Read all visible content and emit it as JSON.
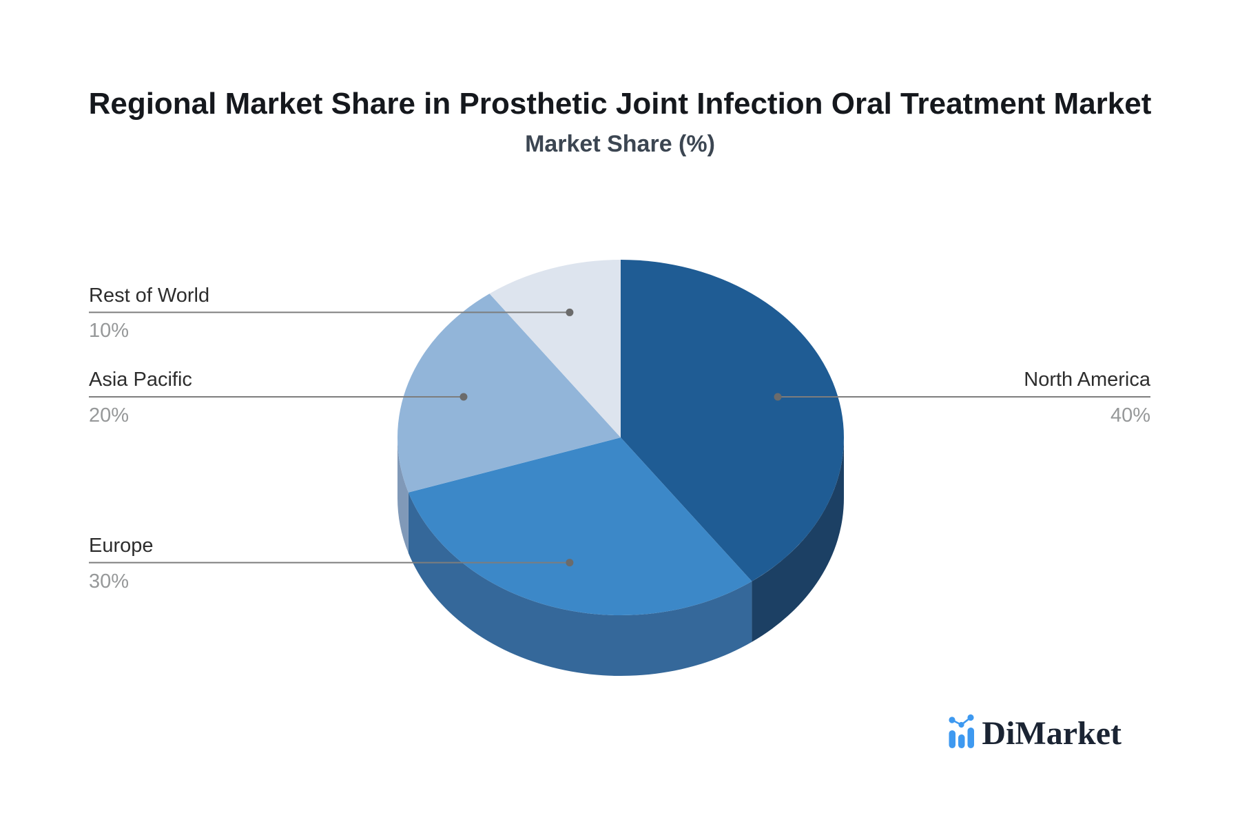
{
  "header": {
    "title": "Regional Market Share in Prosthetic Joint Infection Oral Treatment Market",
    "subtitle": "Market Share (%)"
  },
  "chart_data": {
    "type": "pie",
    "style": "3d-depth",
    "title": "Regional Market Share in Prosthetic Joint Infection Oral Treatment Market",
    "subtitle": "Market Share (%)",
    "unit": "%",
    "direction": "clockwise",
    "start_angle_deg": 0,
    "legend": "none",
    "label_placement": "outside-with-connector-lines",
    "labels": [
      "North America",
      "Europe",
      "Asia Pacific",
      "Rest of World"
    ],
    "values": [
      40,
      30,
      20,
      10
    ],
    "pct_labels": [
      "40%",
      "30%",
      "20%",
      "10%"
    ],
    "colors": [
      "#1F5C94",
      "#3C88C8",
      "#92B5D9",
      "#DDE4EE"
    ],
    "side_colors": [
      "#1C4064",
      "#35689A",
      "#8099B8",
      "#BAC4D4"
    ]
  },
  "colors": {
    "background": "#FFFFFF",
    "title_text": "#15181D",
    "subtitle_text": "#3C4652",
    "label_text": "#2D2D2D",
    "pct_text": "#969899",
    "connector_line": "#7D7D7D",
    "connector_dot": "#6B6B6B"
  },
  "logo": {
    "text": "DiMarket",
    "icon": "bar-line-chart-icon",
    "text_color": "#1B2433",
    "icon_color": "#3E99F0"
  }
}
